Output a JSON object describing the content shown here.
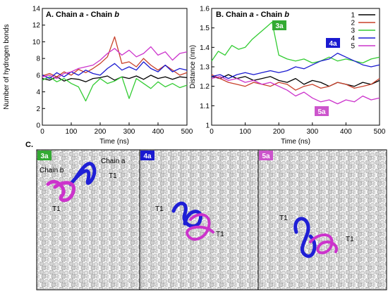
{
  "chart_data": [
    {
      "type": "line",
      "panel": "A",
      "title": [
        "A. Chain ",
        "a",
        " - Chain ",
        "b"
      ],
      "xlabel": "Time (ns)",
      "ylabel": "Number of hydrogen bonds",
      "xlim": [
        0,
        500
      ],
      "ylim": [
        0,
        14
      ],
      "xticks": [
        "0",
        "100",
        "200",
        "300",
        "400",
        "500"
      ],
      "yticks": [
        "0",
        "2",
        "4",
        "6",
        "8",
        "10",
        "12",
        "14"
      ],
      "series": [
        {
          "name": "1",
          "color": "#000000",
          "x": [
            0,
            25,
            50,
            75,
            100,
            125,
            150,
            175,
            200,
            225,
            250,
            275,
            300,
            325,
            350,
            375,
            400,
            425,
            450,
            475,
            500
          ],
          "values": [
            5.6,
            5.4,
            5.8,
            5.3,
            5.6,
            5.5,
            5.2,
            5.6,
            5.7,
            5.9,
            5.4,
            5.8,
            5.6,
            5.9,
            5.5,
            6.0,
            5.6,
            5.8,
            5.5,
            5.8,
            5.7
          ]
        },
        {
          "name": "2",
          "color": "#c8402a",
          "x": [
            0,
            25,
            50,
            75,
            100,
            125,
            150,
            175,
            200,
            225,
            250,
            275,
            300,
            325,
            350,
            375,
            400,
            425,
            450,
            475,
            500
          ],
          "values": [
            5.9,
            6.2,
            5.8,
            6.4,
            6.0,
            6.7,
            6.3,
            6.8,
            7.4,
            8.2,
            10.6,
            7.4,
            7.6,
            7.0,
            8.0,
            7.2,
            6.6,
            7.2,
            6.6,
            6.0,
            6.3
          ]
        },
        {
          "name": "3",
          "color": "#33cc33",
          "x": [
            0,
            25,
            50,
            75,
            100,
            125,
            150,
            175,
            200,
            225,
            250,
            275,
            300,
            325,
            350,
            375,
            400,
            425,
            450,
            475,
            500
          ],
          "values": [
            5.4,
            5.8,
            5.2,
            5.6,
            5.0,
            4.6,
            2.9,
            4.8,
            5.6,
            5.0,
            5.3,
            5.8,
            3.2,
            5.6,
            5.0,
            4.4,
            5.2,
            4.6,
            5.0,
            4.5,
            4.8
          ]
        },
        {
          "name": "4",
          "color": "#1a1ad0",
          "x": [
            0,
            25,
            50,
            75,
            100,
            125,
            150,
            175,
            200,
            225,
            250,
            275,
            300,
            325,
            350,
            375,
            400,
            425,
            450,
            475,
            500
          ],
          "values": [
            6.0,
            5.6,
            6.3,
            5.8,
            6.4,
            6.0,
            6.6,
            6.2,
            6.0,
            6.8,
            7.4,
            6.6,
            7.0,
            6.6,
            7.6,
            6.8,
            6.4,
            7.2,
            6.4,
            6.8,
            6.6
          ]
        },
        {
          "name": "5",
          "color": "#cc33cc",
          "x": [
            0,
            25,
            50,
            75,
            100,
            125,
            150,
            175,
            200,
            225,
            250,
            275,
            300,
            325,
            350,
            375,
            400,
            425,
            450,
            475,
            500
          ],
          "values": [
            5.8,
            6.0,
            5.6,
            6.2,
            6.4,
            6.8,
            7.0,
            7.2,
            7.8,
            8.6,
            9.2,
            8.4,
            9.0,
            8.2,
            8.6,
            9.4,
            8.4,
            8.8,
            7.8,
            8.6,
            8.8
          ]
        }
      ]
    },
    {
      "type": "line",
      "panel": "B",
      "title": [
        "B. Chain ",
        "a",
        " - Chain ",
        "b"
      ],
      "xlabel": "Time (ns)",
      "ylabel": "Distance (nm)",
      "xlim": [
        0,
        500
      ],
      "ylim": [
        1.0,
        1.6
      ],
      "xticks": [
        "0",
        "100",
        "200",
        "300",
        "400",
        "500"
      ],
      "yticks": [
        "1",
        "1.1",
        "1.2",
        "1.3",
        "1.4",
        "1.5",
        "1.6"
      ],
      "legend": {
        "position": "top-right",
        "entries": [
          "1",
          "2",
          "3",
          "4",
          "5"
        ]
      },
      "annotations": [
        {
          "text": "3a",
          "color": "#33aa33"
        },
        {
          "text": "4a",
          "color": "#1a1ad0"
        },
        {
          "text": "5a",
          "color": "#cc55cc"
        }
      ],
      "series": [
        {
          "name": "1",
          "color": "#000000",
          "x": [
            0,
            25,
            50,
            75,
            100,
            125,
            150,
            175,
            200,
            225,
            250,
            275,
            300,
            325,
            350,
            375,
            400,
            425,
            450,
            475,
            500
          ],
          "values": [
            1.25,
            1.24,
            1.26,
            1.24,
            1.25,
            1.23,
            1.24,
            1.25,
            1.23,
            1.22,
            1.24,
            1.21,
            1.23,
            1.22,
            1.2,
            1.22,
            1.21,
            1.2,
            1.22,
            1.21,
            1.23
          ]
        },
        {
          "name": "2",
          "color": "#c8402a",
          "x": [
            0,
            25,
            50,
            75,
            100,
            125,
            150,
            175,
            200,
            225,
            250,
            275,
            300,
            325,
            350,
            375,
            400,
            425,
            450,
            475,
            500
          ],
          "values": [
            1.26,
            1.24,
            1.22,
            1.21,
            1.2,
            1.22,
            1.21,
            1.2,
            1.22,
            1.21,
            1.18,
            1.2,
            1.21,
            1.19,
            1.2,
            1.22,
            1.21,
            1.19,
            1.2,
            1.21,
            1.24
          ]
        },
        {
          "name": "3",
          "color": "#33cc33",
          "x": [
            0,
            20,
            40,
            60,
            80,
            100,
            120,
            140,
            160,
            180,
            200,
            225,
            250,
            275,
            300,
            325,
            350,
            375,
            400,
            425,
            450,
            475,
            500
          ],
          "values": [
            1.33,
            1.38,
            1.36,
            1.41,
            1.39,
            1.4,
            1.44,
            1.47,
            1.5,
            1.53,
            1.36,
            1.34,
            1.33,
            1.34,
            1.32,
            1.33,
            1.35,
            1.33,
            1.34,
            1.33,
            1.32,
            1.34,
            1.35
          ]
        },
        {
          "name": "4",
          "color": "#1a1ad0",
          "x": [
            0,
            25,
            50,
            75,
            100,
            125,
            150,
            175,
            200,
            225,
            250,
            275,
            300,
            325,
            350,
            375,
            400,
            425,
            450,
            475,
            500
          ],
          "values": [
            1.25,
            1.26,
            1.24,
            1.26,
            1.27,
            1.26,
            1.27,
            1.28,
            1.27,
            1.28,
            1.3,
            1.29,
            1.31,
            1.33,
            1.34,
            1.37,
            1.35,
            1.33,
            1.31,
            1.3,
            1.31
          ]
        },
        {
          "name": "5",
          "color": "#cc33cc",
          "x": [
            0,
            25,
            50,
            75,
            100,
            125,
            150,
            175,
            200,
            225,
            250,
            275,
            300,
            325,
            350,
            375,
            400,
            425,
            450,
            475,
            500
          ],
          "values": [
            1.24,
            1.25,
            1.23,
            1.24,
            1.22,
            1.23,
            1.21,
            1.22,
            1.2,
            1.18,
            1.15,
            1.17,
            1.14,
            1.12,
            1.13,
            1.11,
            1.13,
            1.12,
            1.15,
            1.13,
            1.14
          ]
        }
      ]
    }
  ],
  "panel_c": {
    "title": "C.",
    "subpanels": [
      {
        "tag": "3a",
        "tag_color": "#33aa33",
        "labels": [
          "Chain b",
          "Chain a",
          "T1",
          "T1"
        ]
      },
      {
        "tag": "4a",
        "tag_color": "#1a1ad0",
        "labels": [
          "T1",
          "T1"
        ]
      },
      {
        "tag": "5a",
        "tag_color": "#cc55cc",
        "labels": [
          "T1",
          "T1"
        ]
      }
    ]
  }
}
